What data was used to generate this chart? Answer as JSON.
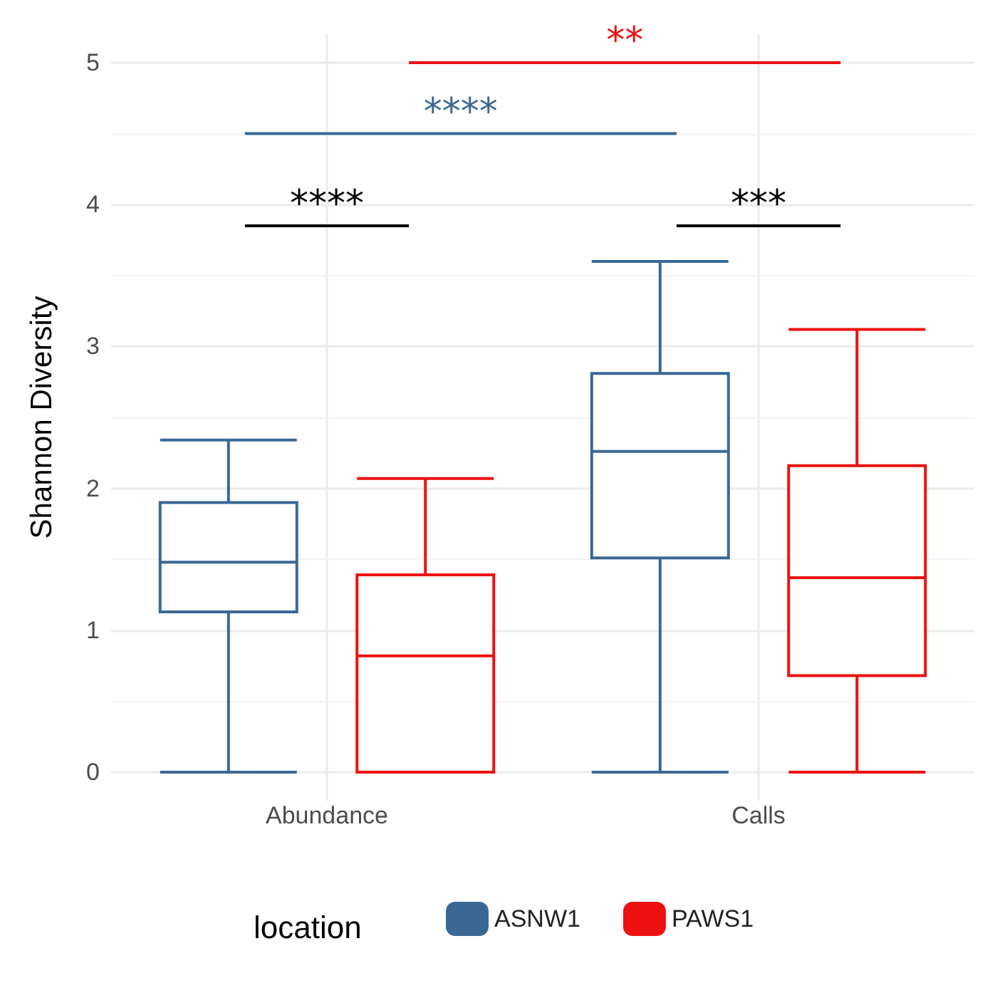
{
  "chart_data": {
    "type": "box",
    "ylabel": "Shannon Diversity",
    "legend_title": "location",
    "categories": [
      "Abundance",
      "Calls"
    ],
    "series": [
      {
        "name": "ASNW1",
        "color": "#3a6895",
        "boxes": [
          {
            "low": 0,
            "q1": 1.13,
            "median": 1.48,
            "q3": 1.9,
            "high": 2.34
          },
          {
            "low": 0,
            "q1": 1.51,
            "median": 2.26,
            "q3": 2.81,
            "high": 3.6
          }
        ]
      },
      {
        "name": "PAWS1",
        "color": "#ee1111",
        "boxes": [
          {
            "low": 0,
            "q1": 0,
            "median": 0.82,
            "q3": 1.39,
            "high": 2.07
          },
          {
            "low": 0,
            "q1": 0.68,
            "median": 1.37,
            "q3": 2.16,
            "high": 3.12
          }
        ]
      }
    ],
    "ylim": [
      0,
      5
    ],
    "yticks": [
      0,
      1,
      2,
      3,
      4,
      5
    ],
    "grid": true,
    "legend": "bottom",
    "annotations": [
      "**",
      "****",
      "****",
      "***"
    ]
  }
}
